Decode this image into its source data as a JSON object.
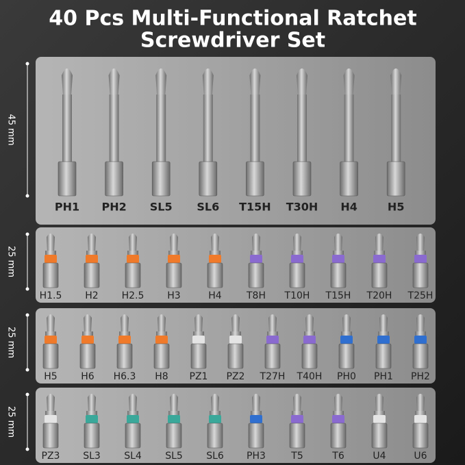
{
  "title": [
    "40 Pcs Multi-Functional Ratchet",
    "Screwdriver Set"
  ],
  "sections": [
    {
      "dimension": "45 mm",
      "bits": [
        {
          "label": "PH1"
        },
        {
          "label": "PH2"
        },
        {
          "label": "SL5"
        },
        {
          "label": "SL6"
        },
        {
          "label": "T15H"
        },
        {
          "label": "T30H"
        },
        {
          "label": "H4"
        },
        {
          "label": "H5"
        }
      ]
    },
    {
      "dimension": "25 mm",
      "bits": [
        {
          "label": "H1.5",
          "color": "#f07a2a"
        },
        {
          "label": "H2",
          "color": "#f07a2a"
        },
        {
          "label": "H2.5",
          "color": "#f07a2a"
        },
        {
          "label": "H3",
          "color": "#f07a2a"
        },
        {
          "label": "H4",
          "color": "#f07a2a"
        },
        {
          "label": "T8H",
          "color": "#8a6ad0"
        },
        {
          "label": "T10H",
          "color": "#8a6ad0"
        },
        {
          "label": "T15H",
          "color": "#8a6ad0"
        },
        {
          "label": "T20H",
          "color": "#8a6ad0"
        },
        {
          "label": "T25H",
          "color": "#8a6ad0"
        }
      ]
    },
    {
      "dimension": "25 mm",
      "bits": [
        {
          "label": "H5",
          "color": "#f07a2a"
        },
        {
          "label": "H6",
          "color": "#f07a2a"
        },
        {
          "label": "H6.3",
          "color": "#f07a2a"
        },
        {
          "label": "H8",
          "color": "#f07a2a"
        },
        {
          "label": "PZ1",
          "color": "#e4e4e4"
        },
        {
          "label": "PZ2",
          "color": "#e4e4e4"
        },
        {
          "label": "T27H",
          "color": "#8a6ad0"
        },
        {
          "label": "T40H",
          "color": "#8a6ad0"
        },
        {
          "label": "PH0",
          "color": "#2f6fd0"
        },
        {
          "label": "PH1",
          "color": "#2f6fd0"
        },
        {
          "label": "PH2",
          "color": "#2f6fd0"
        }
      ]
    },
    {
      "dimension": "25 mm",
      "bits": [
        {
          "label": "PZ3",
          "color": "#e4e4e4"
        },
        {
          "label": "SL3",
          "color": "#3aa89a"
        },
        {
          "label": "SL4",
          "color": "#3aa89a"
        },
        {
          "label": "SL5",
          "color": "#3aa89a"
        },
        {
          "label": "SL6",
          "color": "#3aa89a"
        },
        {
          "label": "PH3",
          "color": "#2f6fd0"
        },
        {
          "label": "T5",
          "color": "#8a6ad0"
        },
        {
          "label": "T6",
          "color": "#8a6ad0"
        },
        {
          "label": "U4",
          "color": "#e4e4e4"
        },
        {
          "label": "U6",
          "color": "#e4e4e4"
        }
      ]
    }
  ]
}
